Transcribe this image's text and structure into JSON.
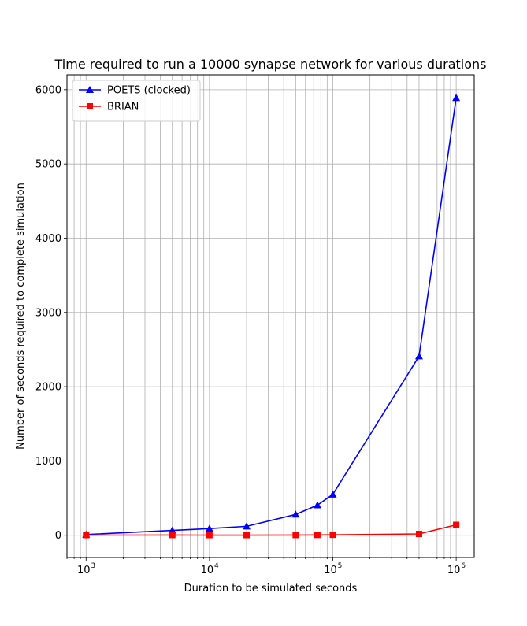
{
  "chart_data": {
    "type": "line",
    "title": "Time required to run a 10000 synapse network for various durations",
    "xlabel": "Duration to be simulated seconds",
    "ylabel": "Number of seconds required to complete simulation",
    "xscale": "log",
    "xlim": [
      700,
      1400000
    ],
    "ylim": [
      -300,
      6200
    ],
    "x_ticks": [
      {
        "value": 1000,
        "base": "10",
        "exp": "3"
      },
      {
        "value": 10000,
        "base": "10",
        "exp": "4"
      },
      {
        "value": 100000,
        "base": "10",
        "exp": "5"
      },
      {
        "value": 1000000,
        "base": "10",
        "exp": "6"
      }
    ],
    "y_ticks": [
      0,
      1000,
      2000,
      3000,
      4000,
      5000,
      6000
    ],
    "grid": true,
    "legend_position": "top-left",
    "series": [
      {
        "name": "POETS (clocked)",
        "color": "#0000ff",
        "marker": "triangle",
        "points": [
          [
            1000,
            10
          ],
          [
            5000,
            65
          ],
          [
            10000,
            90
          ],
          [
            20000,
            120
          ],
          [
            50000,
            280
          ],
          [
            75000,
            405
          ],
          [
            100000,
            550
          ],
          [
            500000,
            2410
          ],
          [
            1000000,
            5890
          ]
        ]
      },
      {
        "name": "BRIAN",
        "color": "#ff0000",
        "marker": "square",
        "points": [
          [
            1000,
            2
          ],
          [
            5000,
            3
          ],
          [
            10000,
            2
          ],
          [
            20000,
            2
          ],
          [
            50000,
            3
          ],
          [
            75000,
            4
          ],
          [
            100000,
            6
          ],
          [
            500000,
            18
          ],
          [
            1000000,
            140
          ]
        ]
      }
    ]
  }
}
